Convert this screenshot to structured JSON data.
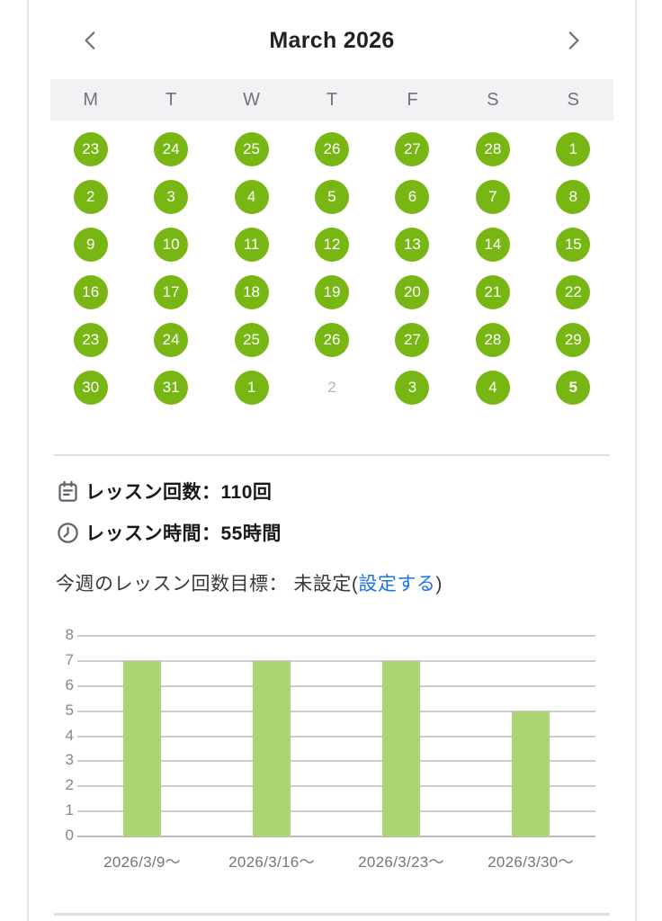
{
  "calendar": {
    "title": "March 2026",
    "weekdays": [
      "M",
      "T",
      "W",
      "T",
      "F",
      "S",
      "S"
    ],
    "circle_color": "#77b613",
    "days": [
      {
        "label": "23",
        "state": "filled"
      },
      {
        "label": "24",
        "state": "filled"
      },
      {
        "label": "25",
        "state": "filled"
      },
      {
        "label": "26",
        "state": "filled"
      },
      {
        "label": "27",
        "state": "filled"
      },
      {
        "label": "28",
        "state": "filled"
      },
      {
        "label": "1",
        "state": "filled"
      },
      {
        "label": "2",
        "state": "filled"
      },
      {
        "label": "3",
        "state": "filled"
      },
      {
        "label": "4",
        "state": "filled"
      },
      {
        "label": "5",
        "state": "filled"
      },
      {
        "label": "6",
        "state": "filled"
      },
      {
        "label": "7",
        "state": "filled"
      },
      {
        "label": "8",
        "state": "filled"
      },
      {
        "label": "9",
        "state": "filled"
      },
      {
        "label": "10",
        "state": "filled"
      },
      {
        "label": "11",
        "state": "filled"
      },
      {
        "label": "12",
        "state": "filled"
      },
      {
        "label": "13",
        "state": "filled"
      },
      {
        "label": "14",
        "state": "filled"
      },
      {
        "label": "15",
        "state": "filled"
      },
      {
        "label": "16",
        "state": "filled"
      },
      {
        "label": "17",
        "state": "filled"
      },
      {
        "label": "18",
        "state": "filled"
      },
      {
        "label": "19",
        "state": "filled"
      },
      {
        "label": "20",
        "state": "filled"
      },
      {
        "label": "21",
        "state": "filled"
      },
      {
        "label": "22",
        "state": "filled"
      },
      {
        "label": "23",
        "state": "filled"
      },
      {
        "label": "24",
        "state": "filled"
      },
      {
        "label": "25",
        "state": "filled"
      },
      {
        "label": "26",
        "state": "filled"
      },
      {
        "label": "27",
        "state": "filled"
      },
      {
        "label": "28",
        "state": "filled"
      },
      {
        "label": "29",
        "state": "filled"
      },
      {
        "label": "30",
        "state": "filled"
      },
      {
        "label": "31",
        "state": "filled"
      },
      {
        "label": "1",
        "state": "filled"
      },
      {
        "label": "2",
        "state": "muted"
      },
      {
        "label": "3",
        "state": "filled"
      },
      {
        "label": "4",
        "state": "filled"
      },
      {
        "label": "5",
        "state": "today"
      }
    ]
  },
  "stats": {
    "lesson_count_text": "レッスン回数：110回",
    "lesson_time_text": "レッスン時間：55時間"
  },
  "goal": {
    "label_text": "今週のレッスン回数目標：",
    "status_text": " 未設定",
    "paren_open": "(",
    "link_text": "設定する",
    "paren_close": ")",
    "link_color": "#1a73e8"
  },
  "chart_data": {
    "type": "bar",
    "categories": [
      "2026/3/9～",
      "2026/3/16～",
      "2026/3/23～",
      "2026/3/30～"
    ],
    "values": [
      7,
      7,
      7,
      5
    ],
    "title": "",
    "xlabel": "",
    "ylabel": "",
    "ylim": [
      0,
      8
    ],
    "yticks": [
      0,
      1,
      2,
      3,
      4,
      5,
      6,
      7,
      8
    ],
    "bar_color": "#a9d572",
    "grid": true,
    "legend": false
  }
}
